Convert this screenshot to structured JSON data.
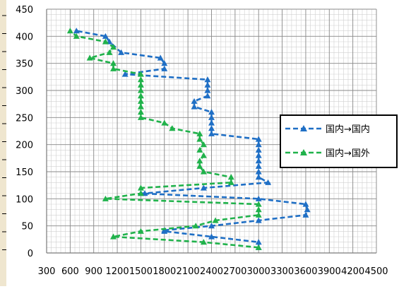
{
  "chart_data": {
    "type": "line",
    "title": "",
    "xlabel": "",
    "ylabel": "",
    "xlim": [
      300,
      4500
    ],
    "ylim": [
      0,
      450
    ],
    "x_ticks": [
      "300",
      "600",
      "900",
      "1200",
      "1500",
      "1800",
      "2100",
      "2400",
      "2700",
      "3000",
      "3300",
      "3600",
      "3900",
      "4200",
      "4500"
    ],
    "y_ticks": [
      "0",
      "50",
      "100",
      "150",
      "200",
      "250",
      "300",
      "350",
      "400",
      "450"
    ],
    "grid": true,
    "legend_position": "right",
    "series": [
      {
        "name": "国内→国内",
        "color": "#1f6fc5",
        "marker": "triangle",
        "points": [
          [
            3000,
            10
          ],
          [
            3000,
            20
          ],
          [
            2400,
            30
          ],
          [
            1800,
            40
          ],
          [
            1800,
            42
          ],
          [
            2400,
            50
          ],
          [
            3000,
            60
          ],
          [
            3600,
            70
          ],
          [
            3620,
            80
          ],
          [
            3600,
            90
          ],
          [
            3000,
            100
          ],
          [
            1500,
            110
          ],
          [
            1550,
            110
          ],
          [
            2300,
            120
          ],
          [
            3120,
            130
          ],
          [
            3000,
            140
          ],
          [
            3000,
            150
          ],
          [
            3000,
            160
          ],
          [
            3000,
            170
          ],
          [
            3000,
            180
          ],
          [
            3000,
            190
          ],
          [
            3000,
            200
          ],
          [
            3000,
            210
          ],
          [
            2400,
            220
          ],
          [
            2400,
            230
          ],
          [
            2400,
            240
          ],
          [
            2400,
            250
          ],
          [
            2400,
            260
          ],
          [
            2180,
            270
          ],
          [
            2180,
            280
          ],
          [
            2350,
            290
          ],
          [
            2350,
            300
          ],
          [
            2350,
            310
          ],
          [
            2350,
            320
          ],
          [
            1300,
            330
          ],
          [
            1800,
            340
          ],
          [
            1800,
            350
          ],
          [
            1750,
            360
          ],
          [
            1250,
            370
          ],
          [
            1100,
            390
          ],
          [
            1050,
            400
          ],
          [
            680,
            410
          ]
        ]
      },
      {
        "name": "国内→国外",
        "color": "#20b24b",
        "marker": "triangle",
        "points": [
          [
            3000,
            10
          ],
          [
            2300,
            20
          ],
          [
            1150,
            30
          ],
          [
            1500,
            40
          ],
          [
            2200,
            50
          ],
          [
            2450,
            60
          ],
          [
            3000,
            70
          ],
          [
            3000,
            80
          ],
          [
            3000,
            90
          ],
          [
            1050,
            100
          ],
          [
            1500,
            110
          ],
          [
            1500,
            120
          ],
          [
            2650,
            130
          ],
          [
            2650,
            140
          ],
          [
            2300,
            150
          ],
          [
            2250,
            160
          ],
          [
            2250,
            170
          ],
          [
            2300,
            180
          ],
          [
            2250,
            190
          ],
          [
            2300,
            200
          ],
          [
            2250,
            210
          ],
          [
            2250,
            220
          ],
          [
            1900,
            230
          ],
          [
            1800,
            240
          ],
          [
            1500,
            250
          ],
          [
            1500,
            260
          ],
          [
            1500,
            270
          ],
          [
            1500,
            280
          ],
          [
            1500,
            290
          ],
          [
            1500,
            300
          ],
          [
            1500,
            310
          ],
          [
            1500,
            320
          ],
          [
            1500,
            330
          ],
          [
            1150,
            340
          ],
          [
            1150,
            350
          ],
          [
            850,
            360
          ],
          [
            1100,
            370
          ],
          [
            1150,
            380
          ],
          [
            1050,
            390
          ],
          [
            680,
            400
          ],
          [
            600,
            410
          ]
        ]
      }
    ]
  }
}
